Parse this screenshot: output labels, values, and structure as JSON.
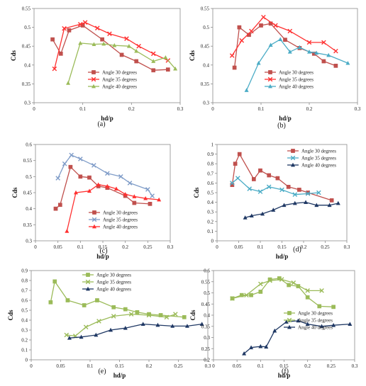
{
  "legend_labels": [
    "Angle 30 degrees",
    "Angle 35 degrees",
    "Angle 40 degrees"
  ],
  "chart_data": [
    {
      "type": "line",
      "panel_label": "(a)",
      "ylabel": "Cds",
      "xlabel": "hd/p",
      "xlim": [
        0,
        0.3
      ],
      "ylim": [
        0.3,
        0.55
      ],
      "xticks": [
        "0",
        "0.1",
        "0.2",
        "0.3"
      ],
      "yticks": [
        "0.3",
        "0.35",
        "0.4",
        "0.45",
        "0.5",
        "0.55"
      ],
      "legend_position": "lower-right",
      "series": [
        {
          "name": "Angle 30 degrees",
          "color": "#c0504d",
          "marker": "square",
          "points": [
            [
              0.038,
              0.468
            ],
            [
              0.055,
              0.43
            ],
            [
              0.072,
              0.492
            ],
            [
              0.1,
              0.505
            ],
            [
              0.14,
              0.468
            ],
            [
              0.18,
              0.427
            ],
            [
              0.21,
              0.41
            ],
            [
              0.245,
              0.386
            ],
            [
              0.275,
              0.388
            ]
          ]
        },
        {
          "name": "Angle 35 degrees",
          "color": "#ff3030",
          "marker": "cross",
          "points": [
            [
              0.042,
              0.39
            ],
            [
              0.062,
              0.497
            ],
            [
              0.095,
              0.508
            ],
            [
              0.105,
              0.513
            ],
            [
              0.13,
              0.498
            ],
            [
              0.155,
              0.483
            ],
            [
              0.19,
              0.47
            ],
            [
              0.215,
              0.45
            ],
            [
              0.245,
              0.43
            ],
            [
              0.275,
              0.412
            ]
          ]
        },
        {
          "name": "Angle 40 degrees",
          "color": "#9bbb59",
          "marker": "triangle",
          "points": [
            [
              0.07,
              0.352
            ],
            [
              0.095,
              0.458
            ],
            [
              0.123,
              0.455
            ],
            [
              0.143,
              0.456
            ],
            [
              0.165,
              0.452
            ],
            [
              0.195,
              0.45
            ],
            [
              0.21,
              0.437
            ],
            [
              0.245,
              0.41
            ],
            [
              0.27,
              0.42
            ],
            [
              0.29,
              0.39
            ]
          ]
        }
      ]
    },
    {
      "type": "line",
      "panel_label": "(b)",
      "ylabel": "Cds",
      "xlabel": "hd/p",
      "xlim": [
        0,
        0.3
      ],
      "ylim": [
        0.3,
        0.55
      ],
      "xticks": [
        "0",
        "0.1",
        "0.2",
        "0.3"
      ],
      "yticks": [
        "0.3",
        "0.35",
        "0.4",
        "0.45",
        "0.5",
        "0.55"
      ],
      "legend_position": "lower-right",
      "series": [
        {
          "name": "Angle 30 degrees",
          "color": "#c0504d",
          "marker": "square",
          "points": [
            [
              0.045,
              0.393
            ],
            [
              0.055,
              0.5
            ],
            [
              0.075,
              0.48
            ],
            [
              0.1,
              0.505
            ],
            [
              0.12,
              0.51
            ],
            [
              0.15,
              0.467
            ],
            [
              0.18,
              0.445
            ],
            [
              0.21,
              0.43
            ],
            [
              0.23,
              0.41
            ],
            [
              0.255,
              0.398
            ]
          ]
        },
        {
          "name": "Angle 35 degrees",
          "color": "#ff3030",
          "marker": "cross",
          "points": [
            [
              0.04,
              0.425
            ],
            [
              0.06,
              0.465
            ],
            [
              0.08,
              0.49
            ],
            [
              0.105,
              0.527
            ],
            [
              0.13,
              0.505
            ],
            [
              0.16,
              0.49
            ],
            [
              0.2,
              0.46
            ],
            [
              0.23,
              0.46
            ],
            [
              0.255,
              0.437
            ]
          ]
        },
        {
          "name": "Angle 40 degrees",
          "color": "#4bacc6",
          "marker": "triangle",
          "points": [
            [
              0.07,
              0.333
            ],
            [
              0.095,
              0.405
            ],
            [
              0.12,
              0.453
            ],
            [
              0.14,
              0.468
            ],
            [
              0.16,
              0.435
            ],
            [
              0.18,
              0.447
            ],
            [
              0.2,
              0.435
            ],
            [
              0.215,
              0.432
            ],
            [
              0.24,
              0.426
            ],
            [
              0.28,
              0.405
            ]
          ]
        }
      ]
    },
    {
      "type": "line",
      "panel_label": "(c)",
      "ylabel": "Cds",
      "xlabel": "hd/p",
      "xlim": [
        0,
        0.3
      ],
      "ylim": [
        0.3,
        0.6
      ],
      "xticks": [
        "0",
        "0.05",
        "0.1",
        "0.15",
        "0.2",
        "0.25",
        "0.3"
      ],
      "yticks": [
        "0.3",
        "0.35",
        "0.4",
        "0.45",
        "0.5",
        "0.55",
        "0.6"
      ],
      "legend_position": "lower-right",
      "series": [
        {
          "name": "Angle 30 degrees",
          "color": "#c0504d",
          "marker": "square",
          "points": [
            [
              0.045,
              0.4
            ],
            [
              0.055,
              0.412
            ],
            [
              0.078,
              0.53
            ],
            [
              0.1,
              0.5
            ],
            [
              0.12,
              0.497
            ],
            [
              0.14,
              0.47
            ],
            [
              0.16,
              0.465
            ],
            [
              0.2,
              0.44
            ],
            [
              0.22,
              0.418
            ],
            [
              0.255,
              0.415
            ]
          ]
        },
        {
          "name": "Angle 35 degrees",
          "color": "#7f9cc8",
          "marker": "cross",
          "points": [
            [
              0.05,
              0.495
            ],
            [
              0.065,
              0.54
            ],
            [
              0.08,
              0.567
            ],
            [
              0.1,
              0.555
            ],
            [
              0.13,
              0.535
            ],
            [
              0.16,
              0.51
            ],
            [
              0.19,
              0.5
            ],
            [
              0.21,
              0.48
            ],
            [
              0.25,
              0.46
            ],
            [
              0.26,
              0.44
            ]
          ]
        },
        {
          "name": "Angle 40 degrees",
          "color": "#ff3030",
          "marker": "triangle",
          "points": [
            [
              0.07,
              0.33
            ],
            [
              0.09,
              0.45
            ],
            [
              0.12,
              0.455
            ],
            [
              0.14,
              0.475
            ],
            [
              0.16,
              0.47
            ],
            [
              0.18,
              0.462
            ],
            [
              0.2,
              0.445
            ],
            [
              0.22,
              0.438
            ],
            [
              0.245,
              0.432
            ],
            [
              0.275,
              0.428
            ]
          ]
        }
      ]
    },
    {
      "type": "line",
      "panel_label": "(d)",
      "ylabel": "Cds",
      "xlabel": "hd/p",
      "xlim": [
        0,
        0.3
      ],
      "ylim": [
        0,
        1
      ],
      "xticks": [
        "0",
        "0.05",
        "0.1",
        "0.15",
        "0.2",
        "0.25",
        "0.3"
      ],
      "yticks": [
        "0",
        "0.1",
        "0.2",
        "0.3",
        "0.4",
        "0.5",
        "0.6",
        "0.7",
        "0.8",
        "0.9",
        "1"
      ],
      "legend_position": "top-right",
      "series": [
        {
          "name": "Angle 30 degrees",
          "color": "#c0504d",
          "marker": "square",
          "points": [
            [
              0.035,
              0.58
            ],
            [
              0.042,
              0.8
            ],
            [
              0.052,
              0.9
            ],
            [
              0.085,
              0.64
            ],
            [
              0.1,
              0.73
            ],
            [
              0.12,
              0.68
            ],
            [
              0.14,
              0.65
            ],
            [
              0.165,
              0.56
            ],
            [
              0.19,
              0.53
            ],
            [
              0.21,
              0.5
            ],
            [
              0.265,
              0.42
            ]
          ]
        },
        {
          "name": "Angle 35 degrees",
          "color": "#4bacc6",
          "marker": "cross",
          "points": [
            [
              0.035,
              0.6
            ],
            [
              0.048,
              0.65
            ],
            [
              0.075,
              0.54
            ],
            [
              0.1,
              0.51
            ],
            [
              0.12,
              0.56
            ],
            [
              0.15,
              0.53
            ],
            [
              0.18,
              0.48
            ],
            [
              0.21,
              0.49
            ],
            [
              0.235,
              0.5
            ]
          ]
        },
        {
          "name": "Angle 40 degrees",
          "color": "#1f3864",
          "marker": "triangle",
          "points": [
            [
              0.065,
              0.24
            ],
            [
              0.08,
              0.26
            ],
            [
              0.105,
              0.28
            ],
            [
              0.13,
              0.32
            ],
            [
              0.155,
              0.37
            ],
            [
              0.18,
              0.39
            ],
            [
              0.205,
              0.4
            ],
            [
              0.23,
              0.37
            ],
            [
              0.26,
              0.37
            ],
            [
              0.28,
              0.39
            ]
          ]
        }
      ]
    },
    {
      "type": "line",
      "panel_label": "(e)",
      "ylabel": "Cds",
      "xlabel": "hd/p",
      "xlim": [
        0,
        0.3
      ],
      "ylim": [
        0,
        0.9
      ],
      "xticks": [
        "0",
        "0.05",
        "0.1",
        "0.15",
        "0.2",
        "0.25",
        "0.3"
      ],
      "yticks": [
        "0",
        "0.1",
        "0.2",
        "0.3",
        "0.4",
        "0.5",
        "0.6",
        "0.7",
        "0.8",
        "0.9"
      ],
      "legend_position": "top-right",
      "series": [
        {
          "name": "Angle 30 degrees",
          "color": "#9bbb59",
          "marker": "square",
          "points": [
            [
              0.033,
              0.58
            ],
            [
              0.04,
              0.79
            ],
            [
              0.062,
              0.6
            ],
            [
              0.09,
              0.55
            ],
            [
              0.112,
              0.6
            ],
            [
              0.14,
              0.53
            ],
            [
              0.16,
              0.51
            ],
            [
              0.18,
              0.48
            ],
            [
              0.2,
              0.46
            ],
            [
              0.22,
              0.45
            ],
            [
              0.26,
              0.43
            ]
          ]
        },
        {
          "name": "Angle 35 degrees",
          "color": "#9bbb59",
          "marker": "cross",
          "points": [
            [
              0.06,
              0.25
            ],
            [
              0.075,
              0.24
            ],
            [
              0.093,
              0.33
            ],
            [
              0.115,
              0.39
            ],
            [
              0.14,
              0.44
            ],
            [
              0.17,
              0.46
            ],
            [
              0.2,
              0.45
            ],
            [
              0.23,
              0.43
            ],
            [
              0.245,
              0.46
            ]
          ]
        },
        {
          "name": "Angle 40 degrees",
          "color": "#1f3864",
          "marker": "triangle",
          "points": [
            [
              0.065,
              0.22
            ],
            [
              0.085,
              0.23
            ],
            [
              0.11,
              0.25
            ],
            [
              0.135,
              0.3
            ],
            [
              0.16,
              0.32
            ],
            [
              0.19,
              0.36
            ],
            [
              0.215,
              0.35
            ],
            [
              0.24,
              0.34
            ],
            [
              0.265,
              0.34
            ],
            [
              0.29,
              0.36
            ]
          ]
        }
      ]
    },
    {
      "type": "line",
      "panel_label": "(f)",
      "ylabel": "Cds",
      "xlabel": "hd/p",
      "xlim": [
        0,
        0.3
      ],
      "ylim": [
        0.2,
        0.6
      ],
      "xticks": [
        "0",
        "0.05",
        "0.1",
        "0.15",
        "0.2",
        "0.25",
        "0.3"
      ],
      "yticks": [
        "0.2",
        "0.25",
        "0.3",
        "0.35",
        "0.4",
        "0.45",
        "0.5",
        "0.55",
        "0.6"
      ],
      "legend_position": "lower-right",
      "series": [
        {
          "name": "Angle 30 degrees",
          "color": "#9bbb59",
          "marker": "square",
          "points": [
            [
              0.04,
              0.475
            ],
            [
              0.06,
              0.49
            ],
            [
              0.08,
              0.49
            ],
            [
              0.1,
              0.505
            ],
            [
              0.12,
              0.56
            ],
            [
              0.14,
              0.565
            ],
            [
              0.16,
              0.535
            ],
            [
              0.18,
              0.53
            ],
            [
              0.2,
              0.48
            ],
            [
              0.225,
              0.44
            ],
            [
              0.255,
              0.437
            ]
          ]
        },
        {
          "name": "Angle 35 degrees",
          "color": "#9bbb59",
          "marker": "cross",
          "points": [
            [
              0.04,
              0.475
            ],
            [
              0.07,
              0.49
            ],
            [
              0.1,
              0.54
            ],
            [
              0.12,
              0.555
            ],
            [
              0.145,
              0.56
            ],
            [
              0.17,
              0.545
            ],
            [
              0.2,
              0.51
            ],
            [
              0.23,
              0.51
            ]
          ]
        },
        {
          "name": "Angle 40 degrees",
          "color": "#1f3864",
          "marker": "triangle",
          "points": [
            [
              0.065,
              0.228
            ],
            [
              0.08,
              0.255
            ],
            [
              0.1,
              0.26
            ],
            [
              0.112,
              0.258
            ],
            [
              0.13,
              0.33
            ],
            [
              0.155,
              0.37
            ],
            [
              0.18,
              0.375
            ],
            [
              0.2,
              0.36
            ],
            [
              0.23,
              0.35
            ],
            [
              0.255,
              0.355
            ],
            [
              0.29,
              0.36
            ]
          ]
        }
      ]
    }
  ]
}
